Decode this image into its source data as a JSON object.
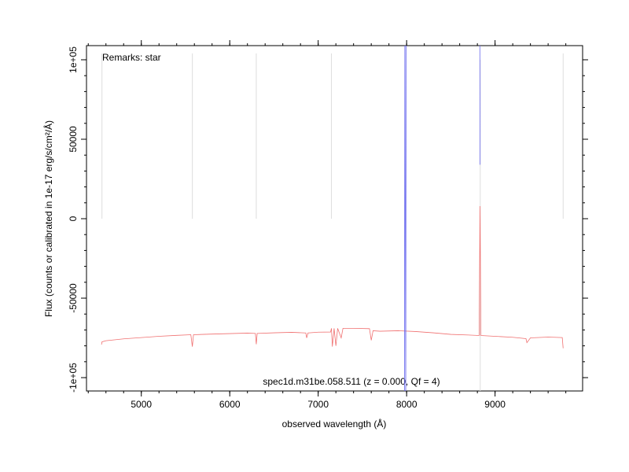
{
  "chart_data": {
    "type": "line",
    "xlabel": "observed wavelength (Å)",
    "ylabel": "Flux (counts or calibrated in 1e-17 erg/s/cm²/Å)",
    "annotations": [
      "Remarks: star",
      "spec1d.m31be.058.511 (z = 0.000, Qf = 4)"
    ],
    "xlim": [
      4380,
      9990
    ],
    "ylim": [
      -108400,
      108900
    ],
    "xticks": [
      5000,
      6000,
      7000,
      8000,
      9000
    ],
    "yticks": [
      {
        "value": -100000,
        "label": "-1e+05"
      },
      -50000,
      0,
      50000,
      {
        "value": 100000,
        "label": "1e+05"
      }
    ],
    "xminor": 200,
    "yminor": 10000,
    "vline_color": "#dddddd",
    "vlines": [
      {
        "x": 4555,
        "y": [
          0,
          104000
        ]
      },
      {
        "x": 5577,
        "y": [
          0,
          104000
        ]
      },
      {
        "x": 6300,
        "y": [
          0,
          104000
        ]
      },
      {
        "x": 7150,
        "y": [
          0,
          104000
        ]
      },
      {
        "x": 9770,
        "y": [
          0,
          104000
        ]
      },
      {
        "x": 8832,
        "y": [
          -108400,
          100000
        ]
      }
    ],
    "series": [
      {
        "color": "#f07070",
        "x": [
          4550,
          4555,
          4600,
          4800,
          5000,
          5200,
          5400,
          5560,
          5577,
          5590,
          5800,
          6000,
          6200,
          6290,
          6300,
          6310,
          6500,
          6700,
          6860,
          6870,
          6885,
          7000,
          7140,
          7150,
          7160,
          7180,
          7200,
          7220,
          7260,
          7280,
          7400,
          7580,
          7600,
          7620,
          7700,
          7900,
          8100,
          8300,
          8500,
          8700,
          8820,
          8830,
          8840,
          9000,
          9200,
          9350,
          9360,
          9400,
          9600,
          9760,
          9770
        ],
        "values": [
          -79200,
          -77500,
          -76800,
          -75600,
          -74800,
          -74000,
          -73400,
          -73000,
          -80500,
          -73000,
          -72600,
          -72300,
          -72000,
          -72200,
          -79000,
          -72200,
          -71800,
          -71500,
          -71900,
          -75000,
          -71900,
          -71400,
          -71300,
          -69000,
          -80500,
          -69000,
          -80000,
          -69000,
          -75000,
          -69000,
          -69000,
          -69200,
          -76500,
          -70500,
          -70800,
          -70500,
          -71000,
          -71800,
          -72800,
          -73200,
          -73500,
          7900,
          -73500,
          -74000,
          -74600,
          -75500,
          -78000,
          -75000,
          -74500,
          -74800,
          -81500
        ]
      },
      {
        "color": "#6a6aee",
        "x": [
          7975,
          7980,
          7990,
          7995,
          null,
          8828,
          8830
        ],
        "values": [
          -120000,
          130000,
          -120000,
          130000,
          null,
          115000,
          34000
        ]
      }
    ]
  }
}
